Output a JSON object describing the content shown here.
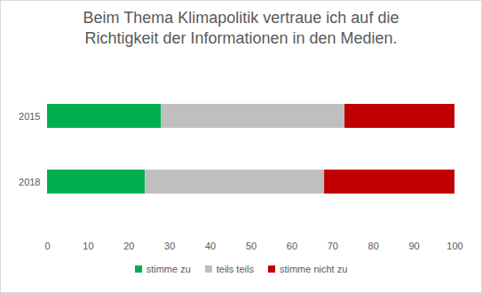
{
  "chart_data": {
    "type": "bar",
    "title": "Beim Thema Klimapolitik vertraue ich auf die Richtigkeit der Informationen in den Medien.",
    "orientation": "horizontal",
    "stacked": true,
    "categories": [
      "2015",
      "2018"
    ],
    "series": [
      {
        "name": "stimme zu",
        "color": "#00b050",
        "values": [
          28,
          24
        ]
      },
      {
        "name": "teils teils",
        "color": "#bfbfbf",
        "values": [
          45,
          44
        ]
      },
      {
        "name": "stimme nicht zu",
        "color": "#c00000",
        "values": [
          27,
          32
        ]
      }
    ],
    "xlim": [
      0,
      100
    ],
    "xticks": [
      0,
      10,
      20,
      30,
      40,
      50,
      60,
      70,
      80,
      90,
      100
    ],
    "grid": false,
    "legend": "bottom"
  }
}
